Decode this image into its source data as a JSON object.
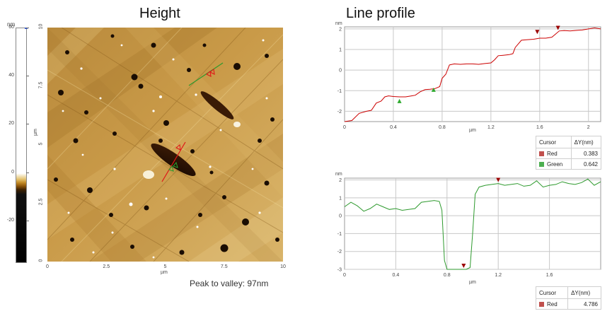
{
  "left_panel": {
    "title": "Height",
    "colorbar": {
      "unit": "nm",
      "ticks": [
        "60",
        "40",
        "20",
        "0",
        "-20"
      ],
      "values": [
        60,
        40,
        20,
        0,
        -20
      ],
      "range": [
        -37,
        60
      ]
    },
    "image_axes": {
      "x_ticks": [
        "0",
        "2.5",
        "5",
        "7.5",
        "10"
      ],
      "y_ticks": [
        "10",
        "7.5",
        "5",
        "2.5",
        "0"
      ],
      "x_unit": "µm",
      "y_unit": "µm"
    },
    "footnote": "Peak to valley: 97nm"
  },
  "right_panel": {
    "title": "Line profile",
    "top_chart": {
      "unit": "nm",
      "x_unit": "µm",
      "y_ticks": [
        "2",
        "1",
        "0",
        "-1",
        "-2"
      ],
      "x_ticks": [
        "0",
        "0.4",
        "0.8",
        "1.2",
        "1.6",
        "2"
      ],
      "cursor_table": {
        "headers": [
          "Cursor",
          "ΔY(nm)"
        ],
        "rows": [
          {
            "name": "Red",
            "value": "0.383",
            "color": "#c0504d"
          },
          {
            "name": "Green",
            "value": "0.642",
            "color": "#4caf50"
          }
        ]
      }
    },
    "bottom_chart": {
      "unit": "nm",
      "x_unit": "µm",
      "y_ticks": [
        "2",
        "1",
        "0",
        "-1",
        "-2",
        "-3"
      ],
      "x_ticks": [
        "0",
        "0.4",
        "0.8",
        "1.2",
        "1.6"
      ],
      "cursor_table": {
        "headers": [
          "Cursor",
          "ΔY(nm)"
        ],
        "rows": [
          {
            "name": "Red",
            "value": "4.786",
            "color": "#c0504d"
          }
        ]
      }
    }
  },
  "chart_data": [
    {
      "type": "line",
      "ylabel": "nm",
      "xlabel": "µm",
      "xlim": [
        0,
        2.1
      ],
      "ylim": [
        -2.5,
        2.1
      ],
      "series": [
        {
          "color": "#cc0000",
          "x": [
            0,
            0.06,
            0.12,
            0.18,
            0.22,
            0.26,
            0.3,
            0.33,
            0.36,
            0.4,
            0.45,
            0.5,
            0.55,
            0.58,
            0.62,
            0.66,
            0.7,
            0.74,
            0.78,
            0.8,
            0.83,
            0.86,
            0.9,
            0.95,
            1.0,
            1.05,
            1.1,
            1.15,
            1.2,
            1.23,
            1.26,
            1.3,
            1.35,
            1.38,
            1.4,
            1.45,
            1.5,
            1.55,
            1.6,
            1.65,
            1.7,
            1.73,
            1.76,
            1.8,
            1.85,
            1.9,
            1.95,
            2.0,
            2.05,
            2.1
          ],
          "y": [
            -2.5,
            -2.45,
            -2.1,
            -2.0,
            -1.95,
            -1.6,
            -1.5,
            -1.3,
            -1.25,
            -1.28,
            -1.3,
            -1.3,
            -1.25,
            -1.22,
            -1.05,
            -0.95,
            -0.93,
            -0.9,
            -0.8,
            -0.4,
            -0.2,
            0.25,
            0.3,
            0.28,
            0.3,
            0.3,
            0.28,
            0.32,
            0.35,
            0.5,
            0.7,
            0.72,
            0.75,
            0.8,
            1.1,
            1.45,
            1.48,
            1.5,
            1.55,
            1.55,
            1.6,
            1.75,
            1.9,
            1.92,
            1.9,
            1.93,
            1.95,
            2.0,
            2.05,
            2.0
          ]
        }
      ],
      "markers": [
        {
          "x": 0.45,
          "y": -1.5,
          "color": "#2eaa2e",
          "dir": "up"
        },
        {
          "x": 0.73,
          "y": -0.95,
          "color": "#2eaa2e",
          "dir": "up"
        },
        {
          "x": 1.58,
          "y": 1.85,
          "color": "#9b0000",
          "dir": "down"
        },
        {
          "x": 1.75,
          "y": 2.05,
          "color": "#9b0000",
          "dir": "down"
        }
      ]
    },
    {
      "type": "line",
      "ylabel": "nm",
      "xlabel": "µm",
      "xlim": [
        0,
        2.0
      ],
      "ylim": [
        -3,
        2.1
      ],
      "series": [
        {
          "color": "#2e9a2e",
          "x": [
            0,
            0.05,
            0.1,
            0.15,
            0.2,
            0.25,
            0.3,
            0.35,
            0.4,
            0.45,
            0.5,
            0.55,
            0.6,
            0.65,
            0.7,
            0.74,
            0.76,
            0.78,
            0.8,
            0.85,
            0.9,
            0.95,
            0.98,
            1.0,
            1.02,
            1.05,
            1.1,
            1.15,
            1.2,
            1.25,
            1.3,
            1.35,
            1.4,
            1.45,
            1.5,
            1.55,
            1.6,
            1.65,
            1.7,
            1.75,
            1.8,
            1.85,
            1.9,
            1.95,
            2.0
          ],
          "y": [
            0.5,
            0.75,
            0.55,
            0.25,
            0.4,
            0.65,
            0.5,
            0.35,
            0.4,
            0.3,
            0.35,
            0.4,
            0.75,
            0.8,
            0.85,
            0.8,
            0.3,
            -2.5,
            -3.0,
            -3.0,
            -3.0,
            -3.0,
            -2.9,
            -1.0,
            1.2,
            1.6,
            1.7,
            1.75,
            1.8,
            1.7,
            1.75,
            1.8,
            1.65,
            1.7,
            1.95,
            1.6,
            1.7,
            1.75,
            1.9,
            1.8,
            1.75,
            1.85,
            2.05,
            1.7,
            1.9
          ]
        }
      ],
      "markers": [
        {
          "x": 0.93,
          "y": -2.8,
          "color": "#9b0000",
          "dir": "down"
        },
        {
          "x": 1.2,
          "y": 2.0,
          "color": "#9b0000",
          "dir": "down"
        }
      ]
    }
  ]
}
